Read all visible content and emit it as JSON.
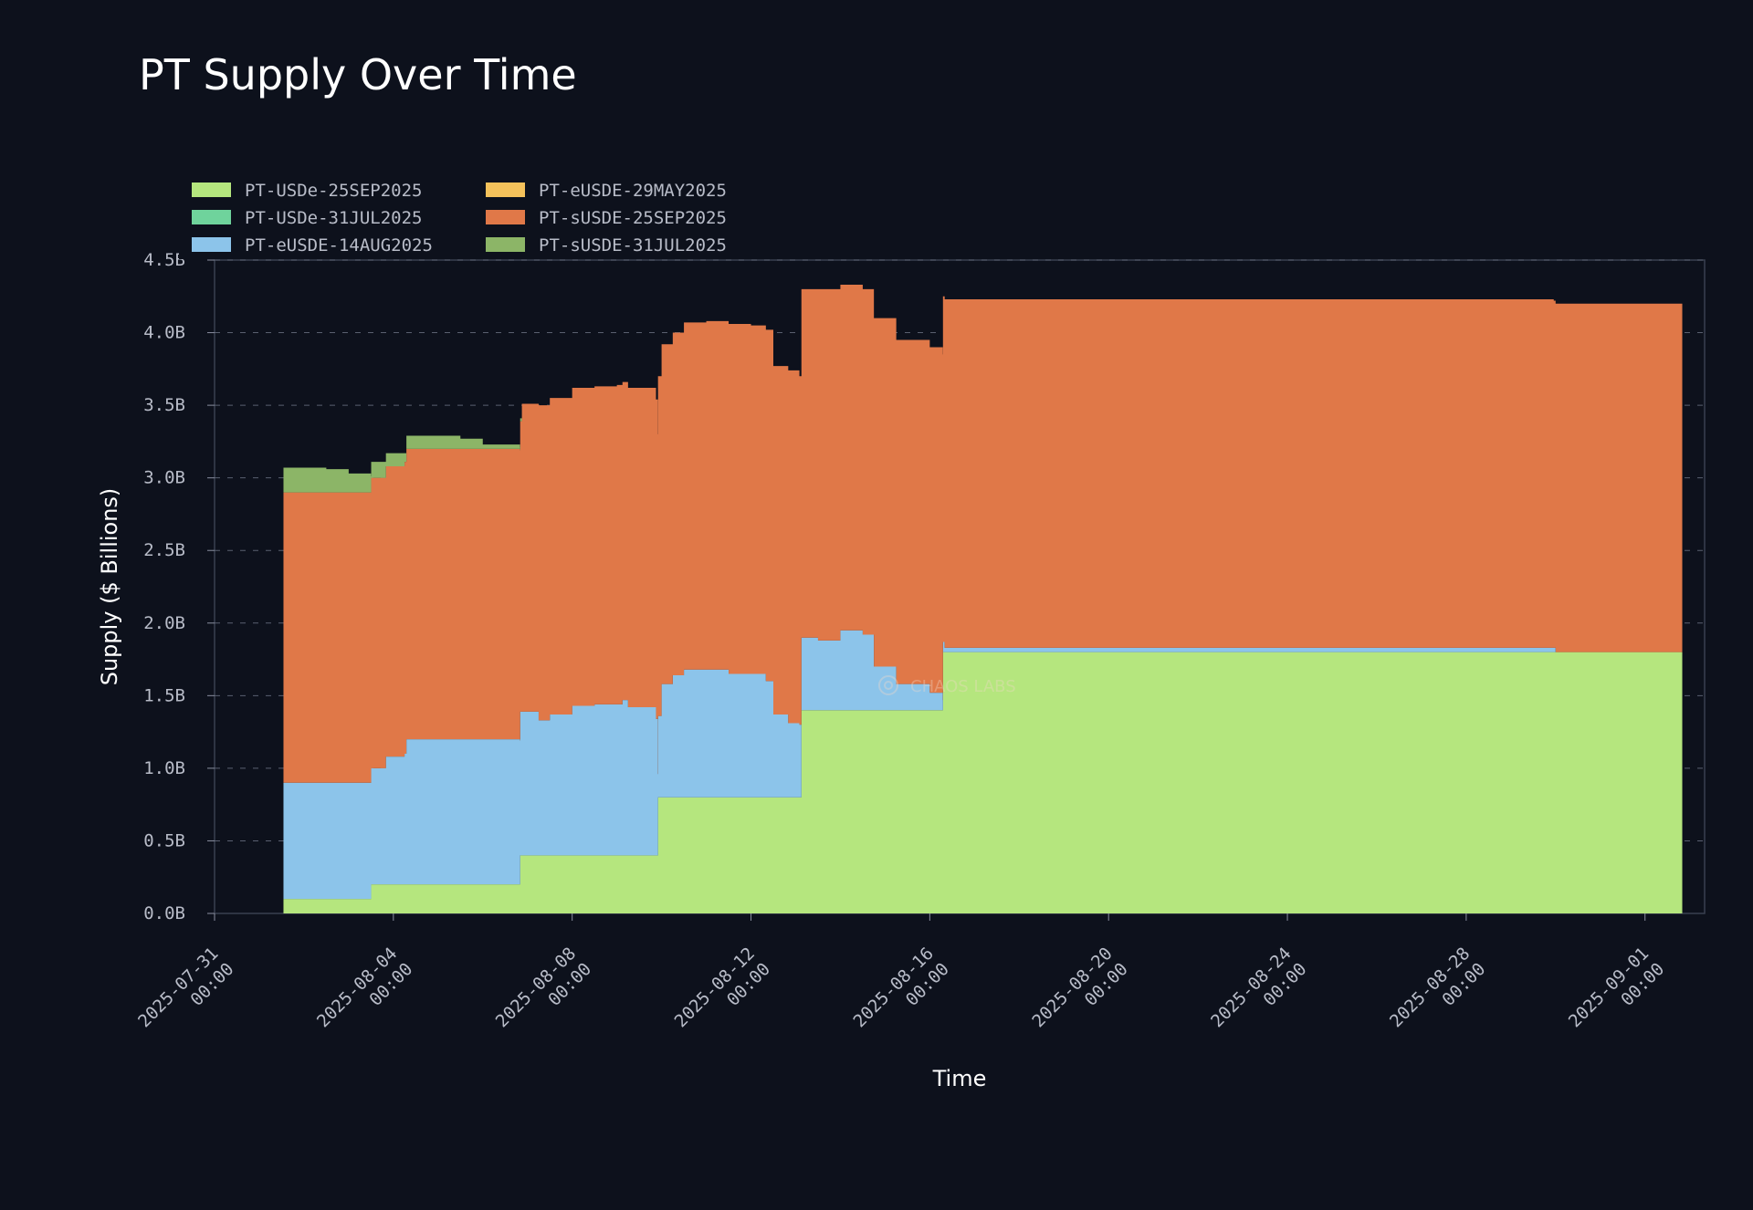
{
  "chart_data": {
    "type": "area",
    "stacked": true,
    "title": "PT Supply Over Time",
    "xlabel": "Time",
    "ylabel": "Supply ($ Billions)",
    "ylim": [
      0,
      4.5
    ],
    "yticks": [
      "0.0B",
      "0.5B",
      "1.0B",
      "1.5B",
      "2.0B",
      "2.5B",
      "3.0B",
      "3.5B",
      "4.0B",
      "4.5B"
    ],
    "ytick_values": [
      0,
      0.5,
      1.0,
      1.5,
      2.0,
      2.5,
      3.0,
      3.5,
      4.0,
      4.5
    ],
    "xlim": [
      "2025-07-31 00:00",
      "2025-09-02 08:00"
    ],
    "xticks": [
      {
        "date": "2025-07-31",
        "time": "00:00"
      },
      {
        "date": "2025-08-04",
        "time": "00:00"
      },
      {
        "date": "2025-08-08",
        "time": "00:00"
      },
      {
        "date": "2025-08-12",
        "time": "00:00"
      },
      {
        "date": "2025-08-16",
        "time": "00:00"
      },
      {
        "date": "2025-08-20",
        "time": "00:00"
      },
      {
        "date": "2025-08-24",
        "time": "00:00"
      },
      {
        "date": "2025-08-28",
        "time": "00:00"
      },
      {
        "date": "2025-09-01",
        "time": "00:00"
      }
    ],
    "grid": "horizontal dashed",
    "legend_position": "top-left",
    "watermark": "CHAOS LABS",
    "series": [
      {
        "name": "PT-USDe-25SEP2025",
        "color": "#b5e67e",
        "points": [
          [
            "2025-08-01 13:00",
            0.1
          ],
          [
            "2025-08-03 12:00",
            0.1
          ],
          [
            "2025-08-03 12:05",
            0.2
          ],
          [
            "2025-08-06 20:00",
            0.2
          ],
          [
            "2025-08-06 20:05",
            0.4
          ],
          [
            "2025-08-09 22:00",
            0.4
          ],
          [
            "2025-08-09 22:05",
            0.8
          ],
          [
            "2025-08-13 03:00",
            0.8
          ],
          [
            "2025-08-13 03:05",
            1.4
          ],
          [
            "2025-08-16 07:00",
            1.4
          ],
          [
            "2025-08-16 07:05",
            1.8
          ],
          [
            "2025-08-29 23:00",
            1.8
          ],
          [
            "2025-08-30 00:00",
            1.8
          ],
          [
            "2025-09-01 20:00",
            1.8
          ]
        ]
      },
      {
        "name": "PT-USDe-31JUL2025",
        "color": "#6fd39c",
        "points": [
          [
            "2025-08-01 13:00",
            0.0
          ],
          [
            "2025-09-01 20:00",
            0.0
          ]
        ]
      },
      {
        "name": "PT-eUSDE-14AUG2025",
        "color": "#8cc4ea",
        "points": [
          [
            "2025-08-01 13:00",
            0.8
          ],
          [
            "2025-08-03 12:00",
            0.8
          ],
          [
            "2025-08-03 13:00",
            0.8
          ],
          [
            "2025-08-03 20:00",
            0.88
          ],
          [
            "2025-08-04 06:00",
            0.9
          ],
          [
            "2025-08-04 07:00",
            1.0
          ],
          [
            "2025-08-05 12:00",
            1.0
          ],
          [
            "2025-08-06 20:00",
            0.99
          ],
          [
            "2025-08-06 21:00",
            0.99
          ],
          [
            "2025-08-07 06:00",
            0.93
          ],
          [
            "2025-08-07 12:00",
            0.97
          ],
          [
            "2025-08-08 00:00",
            1.03
          ],
          [
            "2025-08-08 12:00",
            1.04
          ],
          [
            "2025-08-09 00:00",
            1.04
          ],
          [
            "2025-08-09 03:00",
            1.07
          ],
          [
            "2025-08-09 06:00",
            1.02
          ],
          [
            "2025-08-09 20:00",
            1.02
          ],
          [
            "2025-08-09 21:00",
            0.94
          ],
          [
            "2025-08-09 22:00",
            0.56
          ],
          [
            "2025-08-10 00:00",
            0.78
          ],
          [
            "2025-08-10 06:00",
            0.84
          ],
          [
            "2025-08-10 12:00",
            0.88
          ],
          [
            "2025-08-11 00:00",
            0.88
          ],
          [
            "2025-08-11 12:00",
            0.85
          ],
          [
            "2025-08-12 00:00",
            0.85
          ],
          [
            "2025-08-12 08:00",
            0.8
          ],
          [
            "2025-08-12 12:00",
            0.57
          ],
          [
            "2025-08-12 20:00",
            0.51
          ],
          [
            "2025-08-13 02:00",
            0.5
          ],
          [
            "2025-08-13 03:00",
            0.5
          ],
          [
            "2025-08-13 04:00",
            0.5
          ],
          [
            "2025-08-13 12:00",
            0.48
          ],
          [
            "2025-08-14 00:00",
            0.55
          ],
          [
            "2025-08-14 06:00",
            0.55
          ],
          [
            "2025-08-14 12:00",
            0.52
          ],
          [
            "2025-08-14 18:00",
            0.3
          ],
          [
            "2025-08-15 06:00",
            0.18
          ],
          [
            "2025-08-16 00:00",
            0.12
          ],
          [
            "2025-08-16 07:00",
            0.07
          ],
          [
            "2025-08-16 08:00",
            0.03
          ],
          [
            "2025-08-29 23:00",
            0.03
          ],
          [
            "2025-08-30 00:00",
            0.0
          ],
          [
            "2025-09-01 20:00",
            0.0
          ]
        ]
      },
      {
        "name": "PT-eUSDE-29MAY2025",
        "color": "#f5c25b",
        "points": [
          [
            "2025-08-01 13:00",
            0.0
          ],
          [
            "2025-09-01 20:00",
            0.0
          ]
        ]
      },
      {
        "name": "PT-sUSDE-25SEP2025",
        "color": "#e07848",
        "points": [
          [
            "2025-08-01 13:00",
            2.0
          ],
          [
            "2025-08-03 12:00",
            2.0
          ],
          [
            "2025-08-03 13:00",
            2.0
          ],
          [
            "2025-08-03 20:00",
            2.0
          ],
          [
            "2025-08-04 06:00",
            2.01
          ],
          [
            "2025-08-04 07:00",
            2.0
          ],
          [
            "2025-08-05 12:00",
            2.0
          ],
          [
            "2025-08-06 20:00",
            2.0
          ],
          [
            "2025-08-06 21:00",
            2.12
          ],
          [
            "2025-08-07 06:00",
            2.17
          ],
          [
            "2025-08-07 12:00",
            2.18
          ],
          [
            "2025-08-08 00:00",
            2.19
          ],
          [
            "2025-08-08 12:00",
            2.19
          ],
          [
            "2025-08-09 00:00",
            2.2
          ],
          [
            "2025-08-09 03:00",
            2.19
          ],
          [
            "2025-08-09 06:00",
            2.2
          ],
          [
            "2025-08-09 20:00",
            2.2
          ],
          [
            "2025-08-09 21:00",
            2.2
          ],
          [
            "2025-08-09 22:00",
            2.34
          ],
          [
            "2025-08-10 00:00",
            2.34
          ],
          [
            "2025-08-10 06:00",
            2.36
          ],
          [
            "2025-08-10 12:00",
            2.39
          ],
          [
            "2025-08-11 00:00",
            2.4
          ],
          [
            "2025-08-11 12:00",
            2.41
          ],
          [
            "2025-08-12 00:00",
            2.4
          ],
          [
            "2025-08-12 08:00",
            2.42
          ],
          [
            "2025-08-12 12:00",
            2.4
          ],
          [
            "2025-08-12 20:00",
            2.43
          ],
          [
            "2025-08-13 02:00",
            2.4
          ],
          [
            "2025-08-13 03:00",
            2.4
          ],
          [
            "2025-08-13 04:00",
            2.4
          ],
          [
            "2025-08-13 12:00",
            2.42
          ],
          [
            "2025-08-14 00:00",
            2.38
          ],
          [
            "2025-08-14 06:00",
            2.38
          ],
          [
            "2025-08-14 12:00",
            2.38
          ],
          [
            "2025-08-14 18:00",
            2.4
          ],
          [
            "2025-08-15 06:00",
            2.37
          ],
          [
            "2025-08-16 00:00",
            2.38
          ],
          [
            "2025-08-16 07:00",
            2.38
          ],
          [
            "2025-08-16 08:00",
            2.4
          ],
          [
            "2025-08-29 23:00",
            2.39
          ],
          [
            "2025-08-30 00:00",
            2.4
          ],
          [
            "2025-09-01 20:00",
            2.4
          ]
        ]
      },
      {
        "name": "PT-sUSDE-31JUL2025",
        "color": "#8cb567",
        "points": [
          [
            "2025-08-01 13:00",
            0.17
          ],
          [
            "2025-08-02 12:00",
            0.16
          ],
          [
            "2025-08-03 00:00",
            0.13
          ],
          [
            "2025-08-03 12:00",
            0.11
          ],
          [
            "2025-08-03 13:00",
            0.11
          ],
          [
            "2025-08-03 20:00",
            0.09
          ],
          [
            "2025-08-04 06:00",
            0.06
          ],
          [
            "2025-08-04 07:00",
            0.09
          ],
          [
            "2025-08-05 12:00",
            0.07
          ],
          [
            "2025-08-06 00:00",
            0.03
          ],
          [
            "2025-08-06 20:00",
            0.02
          ],
          [
            "2025-08-06 21:00",
            0.0
          ],
          [
            "2025-09-01 20:00",
            0.0
          ]
        ]
      }
    ]
  }
}
